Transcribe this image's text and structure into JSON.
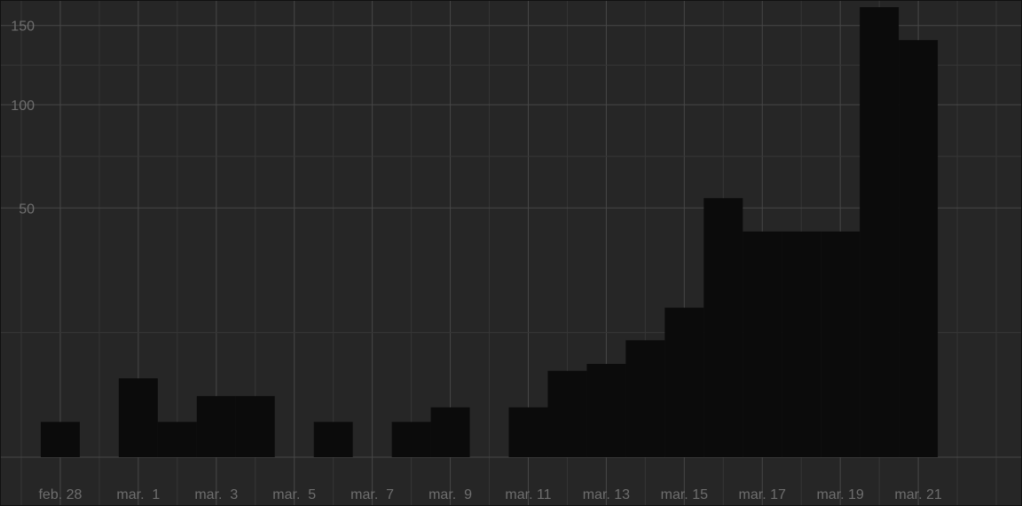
{
  "chart_data": {
    "type": "bar",
    "scale": "sqrt",
    "grid": true,
    "legend": "none",
    "bar_color": "#0b0b0b",
    "background_color": "#262626",
    "grid_color": "#474747",
    "tick_color": "#6e6e6e",
    "ylim": [
      0,
      165
    ],
    "y_ticks": [
      {
        "value": 50,
        "label": "50"
      },
      {
        "value": 100,
        "label": "100"
      },
      {
        "value": 150,
        "label": "150"
      }
    ],
    "x_ticks": [
      {
        "date": "2020-02-28",
        "label": "feb. 28"
      },
      {
        "date": "2020-03-01",
        "label": "mar.  1"
      },
      {
        "date": "2020-03-03",
        "label": "mar.  3"
      },
      {
        "date": "2020-03-05",
        "label": "mar.  5"
      },
      {
        "date": "2020-03-07",
        "label": "mar.  7"
      },
      {
        "date": "2020-03-09",
        "label": "mar.  9"
      },
      {
        "date": "2020-03-11",
        "label": "mar. 11"
      },
      {
        "date": "2020-03-13",
        "label": "mar. 13"
      },
      {
        "date": "2020-03-15",
        "label": "mar. 15"
      },
      {
        "date": "2020-03-17",
        "label": "mar. 17"
      },
      {
        "date": "2020-03-19",
        "label": "mar. 19"
      },
      {
        "date": "2020-03-21",
        "label": "mar. 21"
      }
    ],
    "xlim": [
      "2020-02-27",
      "2020-03-23"
    ],
    "categories": [
      "2020-02-28",
      "2020-02-29",
      "2020-03-01",
      "2020-03-02",
      "2020-03-03",
      "2020-03-04",
      "2020-03-05",
      "2020-03-06",
      "2020-03-07",
      "2020-03-08",
      "2020-03-09",
      "2020-03-10",
      "2020-03-11",
      "2020-03-12",
      "2020-03-13",
      "2020-03-14",
      "2020-03-15",
      "2020-03-16",
      "2020-03-17",
      "2020-03-18",
      "2020-03-19",
      "2020-03-20",
      "2020-03-21"
    ],
    "values": [
      1,
      0,
      5,
      1,
      3,
      3,
      0,
      1,
      0,
      1,
      2,
      0,
      2,
      6,
      7,
      11,
      18,
      54,
      41,
      41,
      41,
      163,
      140
    ]
  }
}
